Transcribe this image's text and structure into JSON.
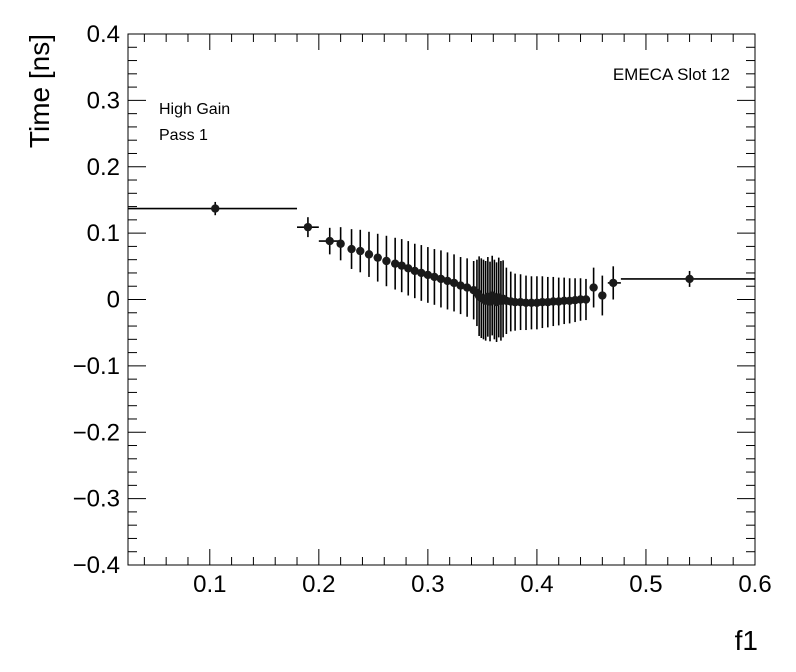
{
  "chart_data": {
    "type": "scatter",
    "xlabel": "f1",
    "ylabel": "Time [ns]",
    "xlim": [
      0.025,
      0.6
    ],
    "ylim": [
      -0.4,
      0.4
    ],
    "x_ticks": [
      "0.1",
      "0.2",
      "0.3",
      "0.4",
      "0.5",
      "0.6"
    ],
    "x_tick_values": [
      0.1,
      0.2,
      0.3,
      0.4,
      0.5,
      0.6
    ],
    "y_ticks": [
      "−0.4",
      "−0.3",
      "−0.2",
      "−0.1",
      "0",
      "0.1",
      "0.2",
      "0.3",
      "0.4"
    ],
    "y_tick_values": [
      -0.4,
      -0.3,
      -0.2,
      -0.1,
      0,
      0.1,
      0.2,
      0.3,
      0.4
    ],
    "annotations": [
      "High Gain",
      "Pass 1",
      "EMECA Slot 12"
    ],
    "points": [
      {
        "x": 0.105,
        "y": 0.137,
        "xlo": 0.025,
        "xhi": 0.18,
        "err": 0.01
      },
      {
        "x": 0.19,
        "y": 0.109,
        "xlo": 0.18,
        "xhi": 0.2,
        "err": 0.015
      },
      {
        "x": 0.21,
        "y": 0.088,
        "xlo": 0.2,
        "xhi": 0.22,
        "err": 0.02
      },
      {
        "x": 0.22,
        "y": 0.084,
        "err": 0.025
      },
      {
        "x": 0.23,
        "y": 0.076,
        "err": 0.03
      },
      {
        "x": 0.238,
        "y": 0.073,
        "err": 0.032
      },
      {
        "x": 0.246,
        "y": 0.068,
        "err": 0.034
      },
      {
        "x": 0.254,
        "y": 0.063,
        "err": 0.036
      },
      {
        "x": 0.262,
        "y": 0.058,
        "err": 0.038
      },
      {
        "x": 0.27,
        "y": 0.054,
        "err": 0.039
      },
      {
        "x": 0.276,
        "y": 0.051,
        "err": 0.04
      },
      {
        "x": 0.282,
        "y": 0.047,
        "err": 0.041
      },
      {
        "x": 0.288,
        "y": 0.043,
        "err": 0.041
      },
      {
        "x": 0.294,
        "y": 0.04,
        "err": 0.042
      },
      {
        "x": 0.3,
        "y": 0.037,
        "err": 0.042
      },
      {
        "x": 0.306,
        "y": 0.034,
        "err": 0.042
      },
      {
        "x": 0.312,
        "y": 0.031,
        "err": 0.043
      },
      {
        "x": 0.318,
        "y": 0.028,
        "err": 0.043
      },
      {
        "x": 0.324,
        "y": 0.025,
        "err": 0.043
      },
      {
        "x": 0.33,
        "y": 0.021,
        "err": 0.043
      },
      {
        "x": 0.336,
        "y": 0.018,
        "err": 0.044
      },
      {
        "x": 0.342,
        "y": 0.014,
        "err": 0.044
      },
      {
        "x": 0.345,
        "y": 0.01,
        "err": 0.05
      },
      {
        "x": 0.347,
        "y": 0.005,
        "err": 0.06
      },
      {
        "x": 0.349,
        "y": 0.002,
        "err": 0.06
      },
      {
        "x": 0.351,
        "y": 0.0,
        "err": 0.06
      },
      {
        "x": 0.353,
        "y": -0.002,
        "err": 0.06
      },
      {
        "x": 0.355,
        "y": 0.004,
        "err": 0.06
      },
      {
        "x": 0.357,
        "y": -0.003,
        "err": 0.06
      },
      {
        "x": 0.359,
        "y": 0.006,
        "err": 0.06
      },
      {
        "x": 0.361,
        "y": 0.0,
        "err": 0.06
      },
      {
        "x": 0.363,
        "y": -0.004,
        "err": 0.06
      },
      {
        "x": 0.365,
        "y": 0.003,
        "err": 0.06
      },
      {
        "x": 0.367,
        "y": -0.002,
        "err": 0.06
      },
      {
        "x": 0.369,
        "y": 0.001,
        "err": 0.058
      },
      {
        "x": 0.372,
        "y": -0.002,
        "err": 0.05
      },
      {
        "x": 0.376,
        "y": -0.003,
        "err": 0.045
      },
      {
        "x": 0.38,
        "y": -0.004,
        "err": 0.043
      },
      {
        "x": 0.385,
        "y": -0.004,
        "err": 0.042
      },
      {
        "x": 0.39,
        "y": -0.005,
        "err": 0.041
      },
      {
        "x": 0.395,
        "y": -0.005,
        "err": 0.04
      },
      {
        "x": 0.4,
        "y": -0.005,
        "err": 0.04
      },
      {
        "x": 0.405,
        "y": -0.004,
        "err": 0.039
      },
      {
        "x": 0.41,
        "y": -0.004,
        "err": 0.038
      },
      {
        "x": 0.415,
        "y": -0.003,
        "err": 0.037
      },
      {
        "x": 0.42,
        "y": -0.003,
        "err": 0.036
      },
      {
        "x": 0.425,
        "y": -0.002,
        "err": 0.035
      },
      {
        "x": 0.43,
        "y": -0.002,
        "err": 0.034
      },
      {
        "x": 0.435,
        "y": -0.001,
        "err": 0.033
      },
      {
        "x": 0.44,
        "y": 0.0,
        "err": 0.032
      },
      {
        "x": 0.445,
        "y": 0.0,
        "err": 0.031
      },
      {
        "x": 0.452,
        "y": 0.018,
        "err": 0.03
      },
      {
        "x": 0.46,
        "y": 0.006,
        "err": 0.03
      },
      {
        "x": 0.47,
        "y": 0.025,
        "xlo": 0.465,
        "xhi": 0.477,
        "err": 0.025
      },
      {
        "x": 0.54,
        "y": 0.031,
        "xlo": 0.477,
        "xhi": 0.6,
        "err": 0.012
      }
    ]
  }
}
